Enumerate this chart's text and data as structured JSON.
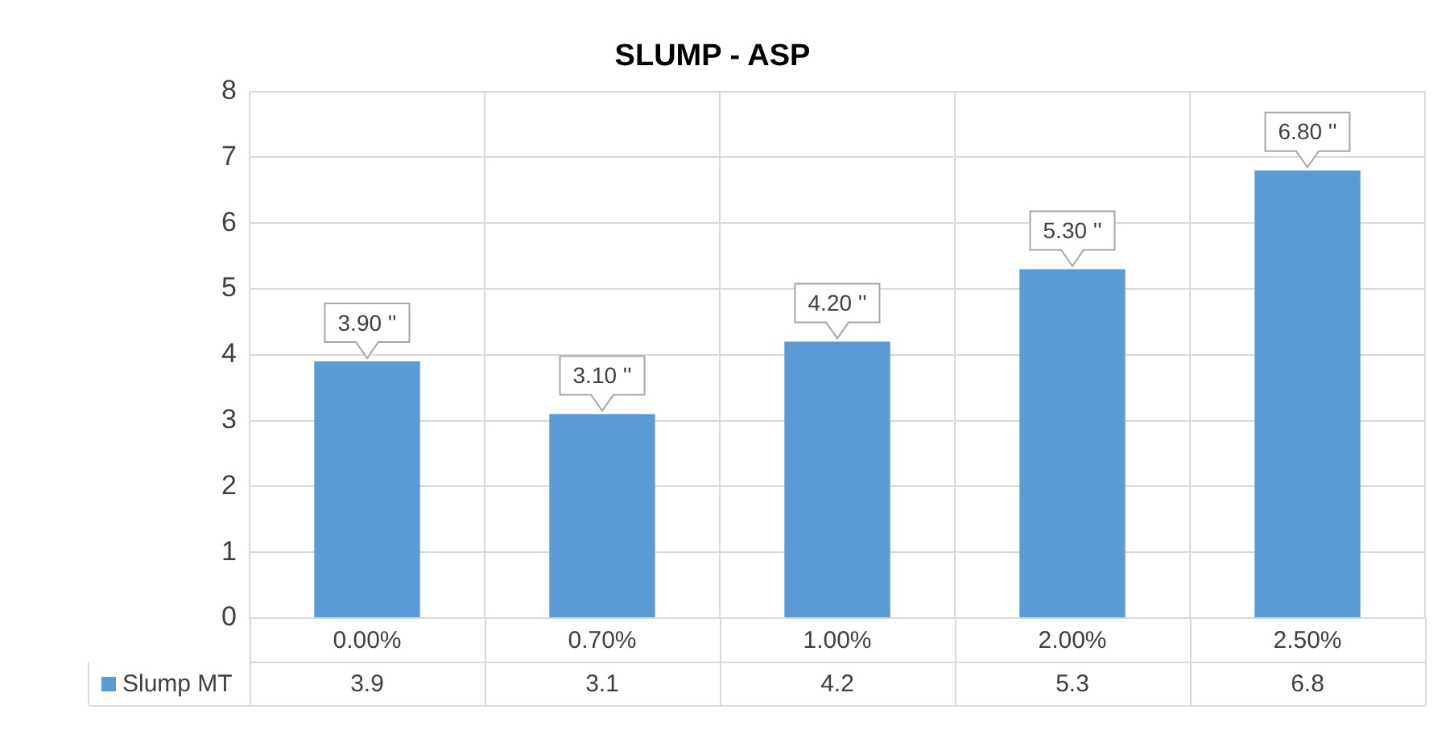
{
  "chart_data": {
    "type": "bar",
    "title": "SLUMP - ASP",
    "categories": [
      "0.00%",
      "0.70%",
      "1.00%",
      "2.00%",
      "2.50%"
    ],
    "series": [
      {
        "name": "Slump MT",
        "color": "#5b9bd5",
        "values": [
          3.9,
          3.1,
          4.2,
          5.3,
          6.8
        ],
        "value_labels": [
          "3.90 ''",
          "3.10 ''",
          "4.20 ''",
          "5.30 ''",
          "6.80 ''"
        ]
      }
    ],
    "ylim": [
      0,
      8
    ],
    "yticks": [
      0,
      1,
      2,
      3,
      4,
      5,
      6,
      7,
      8
    ],
    "grid": true,
    "legend": "bottom",
    "annotations": [
      "3.9",
      "3.1",
      "4.2",
      "5.3",
      "6.8"
    ]
  }
}
